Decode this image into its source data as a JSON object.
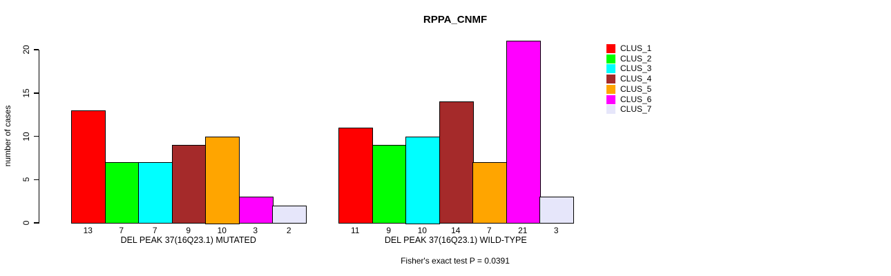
{
  "chart_data": {
    "type": "bar",
    "title": "RPPA_CNMF",
    "ylabel": "number of cases",
    "ylim": [
      0,
      21
    ],
    "yticks": [
      0,
      5,
      10,
      15,
      20
    ],
    "grid": false,
    "legend_position": "right-outside",
    "categories": [
      "DEL PEAK 37(16Q23.1) MUTATED",
      "DEL PEAK 37(16Q23.1) WILD-TYPE"
    ],
    "series": [
      {
        "name": "CLUS_1",
        "color": "#ff0000",
        "values": [
          13,
          11
        ]
      },
      {
        "name": "CLUS_2",
        "color": "#00ff00",
        "values": [
          7,
          9
        ]
      },
      {
        "name": "CLUS_3",
        "color": "#00ffff",
        "values": [
          7,
          10
        ]
      },
      {
        "name": "CLUS_4",
        "color": "#a52a2a",
        "values": [
          9,
          14
        ]
      },
      {
        "name": "CLUS_5",
        "color": "#ffa500",
        "values": [
          10,
          7
        ]
      },
      {
        "name": "CLUS_6",
        "color": "#ff00ff",
        "values": [
          3,
          21
        ]
      },
      {
        "name": "CLUS_7",
        "color": "#e6e6fa",
        "values": [
          2,
          3
        ]
      }
    ],
    "bar_value_labels": {
      "DEL PEAK 37(16Q23.1) MUTATED": [
        13,
        7,
        7,
        9,
        10,
        3,
        2
      ],
      "DEL PEAK 37(16Q23.1) WILD-TYPE": [
        11,
        9,
        10,
        14,
        7,
        21,
        3
      ]
    },
    "footnote": "Fisher's exact test P = 0.0391"
  }
}
